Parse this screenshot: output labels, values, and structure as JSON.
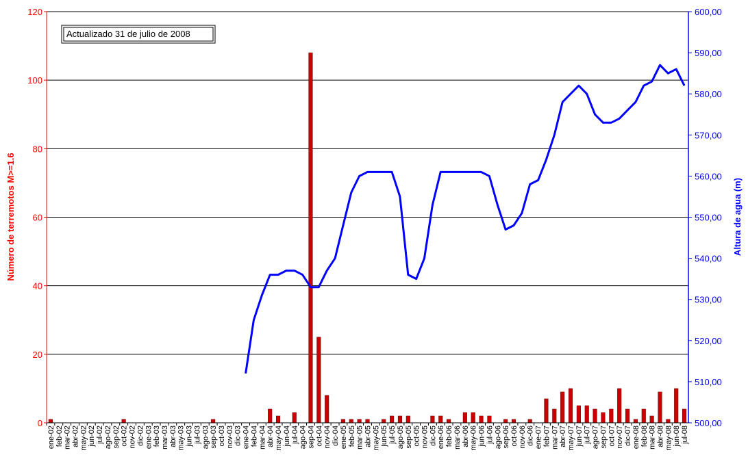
{
  "chart_data": {
    "type": "bar",
    "annotation": "Actualizado 31 de julio de 2008",
    "ylabel": "Número de terremotos M>=1.6",
    "y2label": "Altura de agua (m)",
    "categories": [
      "ene-02",
      "feb-02",
      "mar-02",
      "abr-02",
      "may-02",
      "jun-02",
      "jul-02",
      "ago-02",
      "sep-02",
      "oct-02",
      "nov-02",
      "dic-02",
      "ene-03",
      "feb-03",
      "mar-03",
      "abr-03",
      "may-03",
      "jun-03",
      "jul-03",
      "ago-03",
      "sep-03",
      "oct-03",
      "nov-03",
      "dic-03",
      "ene-04",
      "feb-04",
      "mar-04",
      "abr-04",
      "may-04",
      "jun-04",
      "jul-04",
      "ago-04",
      "sep-04",
      "oct-04",
      "nov-04",
      "dic-04",
      "ene-05",
      "feb-05",
      "mar-05",
      "abr-05",
      "may-05",
      "jun-05",
      "jul-05",
      "ago-05",
      "sep-05",
      "oct-05",
      "nov-05",
      "dic-05",
      "ene-06",
      "feb-06",
      "mar-06",
      "abr-06",
      "may-06",
      "jun-06",
      "jul-06",
      "ago-06",
      "sep-06",
      "oct-06",
      "nov-06",
      "dic-06",
      "ene-07",
      "feb-07",
      "mar-07",
      "abr-07",
      "may-07",
      "jun-07",
      "jul-07",
      "ago-07",
      "sep-07",
      "oct-07",
      "nov-07",
      "dic-07",
      "ene-08",
      "feb-08",
      "mar-08",
      "abr-08",
      "may-08",
      "jun-08",
      "jul-08"
    ],
    "series": [
      {
        "type": "bar",
        "color": "#cc0000",
        "axis": "y",
        "values": [
          1,
          0,
          0,
          0,
          0,
          0,
          0,
          0,
          0,
          1,
          0,
          0,
          0,
          0,
          0,
          0,
          0,
          0,
          0,
          0,
          1,
          0,
          0,
          0,
          0,
          0,
          0,
          4,
          2,
          0,
          3,
          0,
          108,
          25,
          8,
          0,
          1,
          1,
          1,
          1,
          0,
          1,
          2,
          2,
          2,
          0,
          0,
          2,
          2,
          1,
          0,
          3,
          3,
          2,
          2,
          0,
          1,
          1,
          0,
          1,
          0,
          7,
          4,
          9,
          10,
          5,
          5,
          4,
          3,
          4,
          10,
          4,
          1,
          4,
          2,
          9,
          1,
          10,
          4
        ]
      },
      {
        "type": "line",
        "color": "#0000ff",
        "axis": "y2",
        "values": [
          null,
          null,
          null,
          null,
          null,
          null,
          null,
          null,
          null,
          null,
          null,
          null,
          null,
          null,
          null,
          null,
          null,
          null,
          null,
          null,
          null,
          null,
          null,
          null,
          512,
          525,
          531,
          536,
          536,
          537,
          537,
          536,
          533,
          533,
          537,
          540,
          548,
          556,
          560,
          561,
          561,
          561,
          561,
          555,
          536,
          535,
          540,
          553,
          561,
          561,
          561,
          561,
          561,
          561,
          560,
          553,
          547,
          548,
          551,
          558,
          559,
          564,
          570,
          578,
          580,
          582,
          580,
          575,
          573,
          573,
          574,
          576,
          578,
          582,
          583,
          587,
          585,
          586,
          582
        ]
      }
    ],
    "ylim": [
      0,
      120
    ],
    "yticks": [
      0,
      20,
      40,
      60,
      80,
      100,
      120
    ],
    "y2lim": [
      500,
      600
    ],
    "y2ticks": [
      {
        "value": 500,
        "label": "500,00"
      },
      {
        "value": 510,
        "label": "510,00"
      },
      {
        "value": 520,
        "label": "520,00"
      },
      {
        "value": 530,
        "label": "530,00"
      },
      {
        "value": 540,
        "label": "540,00"
      },
      {
        "value": 550,
        "label": "550,00"
      },
      {
        "value": 560,
        "label": "560,00"
      },
      {
        "value": 570,
        "label": "570,00"
      },
      {
        "value": 580,
        "label": "580,00"
      },
      {
        "value": 590,
        "label": "590,00"
      },
      {
        "value": 600,
        "label": "600,00"
      }
    ],
    "grid": true
  }
}
